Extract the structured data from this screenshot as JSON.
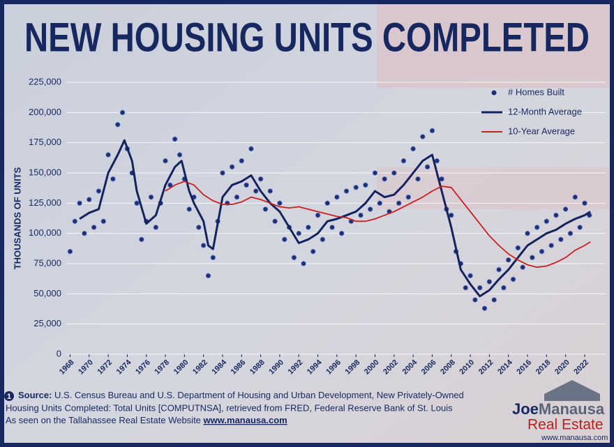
{
  "chart_data": {
    "type": "scatter",
    "title": "NEW HOUSING UNITS COMPLETED",
    "y_label": "THOUSANDS OF UNITS",
    "xlim": [
      1967.6,
      2024.2
    ],
    "ylim": [
      0,
      225000
    ],
    "xticks": [
      1968,
      1970,
      1972,
      1974,
      1976,
      1978,
      1980,
      1982,
      1984,
      1986,
      1988,
      1990,
      1992,
      1994,
      1996,
      1998,
      2000,
      2002,
      2004,
      2006,
      2008,
      2010,
      2012,
      2014,
      2016,
      2018,
      2020,
      2022
    ],
    "yticks": [
      0,
      {
        "value": 25000,
        "label": "25,000"
      },
      {
        "value": 50000,
        "label": "50,000"
      },
      {
        "value": 75000,
        "label": "75,000"
      },
      {
        "value": 100000,
        "label": "100,000"
      },
      {
        "value": 125000,
        "label": "125,000"
      },
      {
        "value": 150000,
        "label": "150,000"
      },
      {
        "value": 175000,
        "label": "175,000"
      },
      {
        "value": 200000,
        "label": "200,000"
      },
      {
        "value": 225000,
        "label": "225,000"
      }
    ],
    "grid": true,
    "legend": "top-right",
    "series": [
      {
        "name": "# Homes Built",
        "type": "scatter",
        "color": "#1c2f78",
        "x": [
          1968,
          1968.5,
          1969,
          1969.5,
          1970,
          1970.5,
          1971,
          1971.5,
          1972,
          1972.5,
          1973,
          1973.5,
          1974,
          1974.5,
          1975,
          1975.5,
          1976,
          1976.5,
          1977,
          1977.5,
          1978,
          1978.5,
          1979,
          1979.5,
          1980,
          1980.5,
          1981,
          1981.5,
          1982,
          1982.5,
          1983,
          1983.5,
          1984,
          1984.5,
          1985,
          1985.5,
          1986,
          1986.5,
          1987,
          1987.5,
          1988,
          1988.5,
          1989,
          1989.5,
          1990,
          1990.5,
          1991,
          1991.5,
          1992,
          1992.5,
          1993,
          1993.5,
          1994,
          1994.5,
          1995,
          1995.5,
          1996,
          1996.5,
          1997,
          1997.5,
          1998,
          1998.5,
          1999,
          1999.5,
          2000,
          2000.5,
          2001,
          2001.5,
          2002,
          2002.5,
          2003,
          2003.5,
          2004,
          2004.5,
          2005,
          2005.5,
          2006,
          2006.5,
          2007,
          2007.5,
          2008,
          2008.5,
          2009,
          2009.5,
          2010,
          2010.5,
          2011,
          2011.5,
          2012,
          2012.5,
          2013,
          2013.5,
          2014,
          2014.5,
          2015,
          2015.5,
          2016,
          2016.5,
          2017,
          2017.5,
          2018,
          2018.5,
          2019,
          2019.5,
          2020,
          2020.5,
          2021,
          2021.5,
          2022,
          2022.5
        ],
        "values": [
          85000,
          110000,
          125000,
          100000,
          128000,
          105000,
          135000,
          110000,
          165000,
          145000,
          190000,
          200000,
          170000,
          150000,
          125000,
          95000,
          110000,
          130000,
          105000,
          125000,
          160000,
          140000,
          178000,
          165000,
          145000,
          120000,
          130000,
          105000,
          90000,
          65000,
          80000,
          110000,
          150000,
          125000,
          155000,
          130000,
          160000,
          140000,
          170000,
          135000,
          145000,
          120000,
          135000,
          110000,
          125000,
          95000,
          105000,
          80000,
          100000,
          75000,
          105000,
          85000,
          115000,
          95000,
          125000,
          105000,
          130000,
          100000,
          135000,
          110000,
          138000,
          115000,
          140000,
          120000,
          150000,
          125000,
          145000,
          118000,
          150000,
          125000,
          160000,
          130000,
          170000,
          145000,
          180000,
          155000,
          185000,
          160000,
          145000,
          120000,
          115000,
          85000,
          75000,
          55000,
          65000,
          45000,
          55000,
          38000,
          60000,
          45000,
          70000,
          55000,
          78000,
          62000,
          88000,
          72000,
          100000,
          80000,
          105000,
          85000,
          110000,
          90000,
          115000,
          95000,
          120000,
          100000,
          130000,
          105000,
          125000,
          115000
        ]
      },
      {
        "name": "12-Month Average",
        "type": "line",
        "color": "#13235e",
        "x": [
          1969,
          1970,
          1971,
          1972,
          1973,
          1973.7,
          1974.5,
          1975,
          1976,
          1977,
          1978,
          1979,
          1979.7,
          1980.5,
          1981,
          1982,
          1982.5,
          1983,
          1984,
          1985,
          1986,
          1987,
          1988,
          1989,
          1990,
          1991,
          1992,
          1993,
          1994,
          1995,
          1996,
          1997,
          1998,
          1999,
          2000,
          2001,
          2002,
          2003,
          2004,
          2005,
          2006,
          2007,
          2008,
          2009,
          2010,
          2011,
          2012,
          2013,
          2014,
          2015,
          2016,
          2017,
          2018,
          2019,
          2020,
          2021,
          2022,
          2022.6
        ],
        "values": [
          112000,
          117000,
          120000,
          150000,
          165000,
          177000,
          160000,
          135000,
          108000,
          115000,
          140000,
          155000,
          160000,
          135000,
          125000,
          110000,
          90000,
          87000,
          130000,
          140000,
          143000,
          148000,
          135000,
          125000,
          118000,
          105000,
          92000,
          95000,
          100000,
          110000,
          112000,
          115000,
          118000,
          125000,
          135000,
          130000,
          132000,
          140000,
          150000,
          160000,
          165000,
          135000,
          105000,
          70000,
          58000,
          48000,
          53000,
          62000,
          70000,
          80000,
          90000,
          95000,
          100000,
          103000,
          108000,
          112000,
          115000,
          118000
        ]
      },
      {
        "name": "10-Year Average",
        "type": "line",
        "color": "#c8201e",
        "x": [
          1978,
          1979,
          1980,
          1981,
          1982,
          1983,
          1984,
          1985,
          1986,
          1987,
          1988,
          1989,
          1990,
          1991,
          1992,
          1993,
          1994,
          1995,
          1996,
          1997,
          1998,
          1999,
          2000,
          2001,
          2002,
          2003,
          2004,
          2005,
          2006,
          2007,
          2008,
          2009,
          2010,
          2011,
          2012,
          2013,
          2014,
          2015,
          2016,
          2017,
          2018,
          2019,
          2020,
          2021,
          2022,
          2022.6
        ],
        "values": [
          135000,
          140000,
          143000,
          140000,
          132000,
          127000,
          124000,
          124000,
          126000,
          130000,
          128000,
          125000,
          122000,
          121000,
          122000,
          120000,
          118000,
          116000,
          114000,
          113000,
          110000,
          110000,
          112000,
          115000,
          118000,
          122000,
          126000,
          130000,
          135000,
          139000,
          138000,
          128000,
          118000,
          108000,
          98000,
          90000,
          83000,
          78000,
          74000,
          72000,
          73000,
          76000,
          80000,
          86000,
          90000,
          93000
        ]
      }
    ],
    "note_number": "1",
    "source_label": "Source:",
    "source_lines": [
      "U.S. Census Bureau and U.S. Department of Housing and Urban Development, New Privately-Owned",
      "Housing Units Completed: Total Units [COMPUTNSA], retrieved from FRED, Federal Reserve Bank of St. Louis",
      "As seen on the Tallahassee Real Estate Website"
    ],
    "source_link": "www.manausa.com",
    "logo": {
      "name_1": "Joe",
      "name_2": "Manausa",
      "tagline": "Real Estate",
      "url": "www.manausa.com"
    }
  }
}
